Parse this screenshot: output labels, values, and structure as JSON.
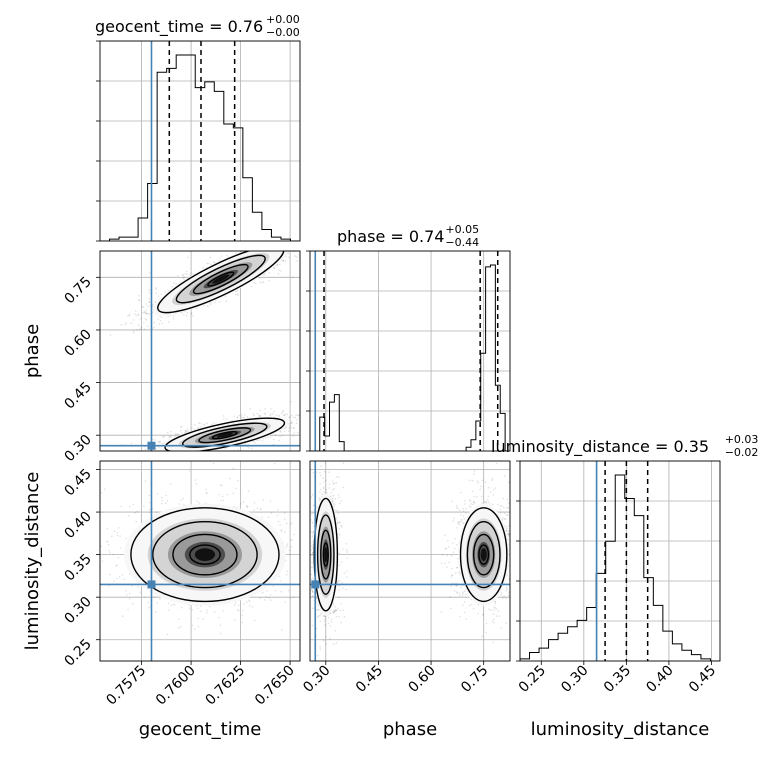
{
  "chart_data": {
    "type": "corner",
    "parameters": [
      "geocent_time",
      "phase",
      "luminosity_distance"
    ],
    "truth": {
      "geocent_time": 0.758,
      "phase": 0.27,
      "luminosity_distance": 0.315
    },
    "truth_color": "#4682b4",
    "titles": [
      {
        "param": "geocent_time",
        "text": "geocent_time = 0.76",
        "sup": "+0.00",
        "sub": "−0.00"
      },
      {
        "param": "phase",
        "text": "phase = 0.74",
        "sup": "+0.05",
        "sub": "−0.44"
      },
      {
        "param": "luminosity_distance",
        "text": "luminosity_distance = 0.35",
        "sup": "+0.03",
        "sub": "−0.02"
      }
    ],
    "ranges": {
      "geocent_time": [
        0.7554,
        0.7655
      ],
      "phase": [
        0.255,
        0.825
      ],
      "luminosity_distance": [
        0.225,
        0.46
      ]
    },
    "ticks": {
      "geocent_time": {
        "values": [
          0.7575,
          0.76,
          0.7625,
          0.765
        ],
        "labels": [
          "0.7575",
          "0.7600",
          "0.7625",
          "0.7650"
        ]
      },
      "phase": {
        "values": [
          0.3,
          0.45,
          0.6,
          0.75
        ],
        "labels": [
          "0.30",
          "0.45",
          "0.60",
          "0.75"
        ]
      },
      "luminosity_distance": {
        "values": [
          0.25,
          0.3,
          0.35,
          0.4,
          0.45
        ],
        "labels": [
          "0.25",
          "0.30",
          "0.35",
          "0.40",
          "0.45"
        ]
      }
    },
    "quantiles": {
      "geocent_time": [
        0.7589,
        0.7605,
        0.7622
      ],
      "phase": [
        0.295,
        0.74,
        0.79
      ],
      "luminosity_distance": [
        0.325,
        0.35,
        0.375
      ]
    },
    "histograms": {
      "geocent_time": {
        "edges_range": [
          0.7554,
          0.7655
        ],
        "counts": [
          0,
          1,
          2,
          2,
          12,
          30,
          88,
          90,
          97,
          97,
          80,
          83,
          78,
          61,
          59,
          33,
          15,
          6,
          2,
          1,
          0
        ]
      },
      "phase": {
        "edges_range": [
          0.255,
          0.825
        ],
        "counts": [
          0,
          0,
          18,
          8,
          26,
          30,
          5,
          0,
          0,
          0,
          0,
          0,
          0,
          0,
          0,
          0,
          0,
          0,
          0,
          0,
          0,
          0,
          0,
          0,
          0,
          0,
          0,
          0,
          0,
          0,
          0,
          0,
          2,
          6,
          16,
          52,
          98,
          99,
          35,
          20,
          0
        ]
      },
      "luminosity_distance": {
        "edges_range": [
          0.225,
          0.46
        ],
        "counts": [
          1,
          4,
          6,
          10,
          13,
          16,
          19,
          25,
          41,
          56,
          87,
          76,
          68,
          39,
          26,
          14,
          8,
          5,
          3,
          1,
          0
        ]
      }
    },
    "modes": [
      {
        "x": "geocent_time",
        "y": "phase",
        "center": [
          0.7615,
          0.745
        ],
        "spread": [
          0.0016,
          0.02
        ],
        "tilt": 26.0
      },
      {
        "x": "geocent_time",
        "y": "phase",
        "center": [
          0.7617,
          0.3
        ],
        "spread": [
          0.0014,
          0.015
        ],
        "tilt": 12.0
      },
      {
        "x": "geocent_time",
        "y": "luminosity_distance",
        "center": [
          0.7607,
          0.35
        ],
        "spread": [
          0.0017,
          0.025
        ],
        "tilt": 0
      },
      {
        "x": "phase",
        "y": "luminosity_distance",
        "center": [
          0.75,
          0.35
        ],
        "spread": [
          0.03,
          0.025
        ],
        "tilt": 0
      },
      {
        "x": "phase",
        "y": "luminosity_distance",
        "center": [
          0.3,
          0.35
        ],
        "spread": [
          0.015,
          0.03
        ],
        "tilt": 0
      }
    ],
    "grid": true
  }
}
